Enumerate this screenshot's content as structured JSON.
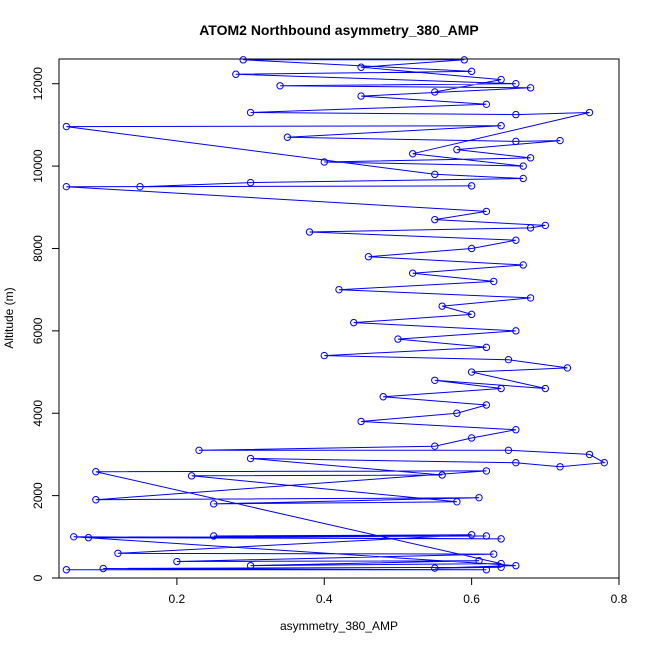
{
  "chart_data": {
    "type": "scatter",
    "title": "ATOM2 Northbound asymmetry_380_AMP",
    "xlabel": "asymmetry_380_AMP",
    "ylabel": "Altitude (m)",
    "xlim": [
      0.04,
      0.8
    ],
    "ylim": [
      0,
      12600
    ],
    "xticks": [
      0.2,
      0.4,
      0.6,
      0.8
    ],
    "yticks": [
      0,
      2000,
      4000,
      6000,
      8000,
      10000,
      12000
    ],
    "grid": false,
    "series": [
      {
        "marker": "open-circle",
        "connected": true,
        "color": "#0000ff",
        "points": [
          [
            0.05,
            200
          ],
          [
            0.62,
            200
          ],
          [
            0.1,
            230
          ],
          [
            0.64,
            260
          ],
          [
            0.55,
            240
          ],
          [
            0.66,
            300
          ],
          [
            0.06,
            1000
          ],
          [
            0.64,
            950
          ],
          [
            0.08,
            980
          ],
          [
            0.62,
            1020
          ],
          [
            0.25,
            1020
          ],
          [
            0.6,
            1050
          ],
          [
            0.12,
            600
          ],
          [
            0.63,
            580
          ],
          [
            0.2,
            400
          ],
          [
            0.61,
            420
          ],
          [
            0.3,
            300
          ],
          [
            0.64,
            350
          ],
          [
            0.09,
            2580
          ],
          [
            0.62,
            2600
          ],
          [
            0.09,
            1900
          ],
          [
            0.61,
            1950
          ],
          [
            0.25,
            1800
          ],
          [
            0.58,
            1850
          ],
          [
            0.22,
            2480
          ],
          [
            0.56,
            2500
          ],
          [
            0.3,
            2900
          ],
          [
            0.66,
            2800
          ],
          [
            0.72,
            2700
          ],
          [
            0.78,
            2800
          ],
          [
            0.76,
            3000
          ],
          [
            0.65,
            3100
          ],
          [
            0.23,
            3100
          ],
          [
            0.55,
            3200
          ],
          [
            0.6,
            3400
          ],
          [
            0.66,
            3600
          ],
          [
            0.45,
            3800
          ],
          [
            0.58,
            4000
          ],
          [
            0.62,
            4200
          ],
          [
            0.48,
            4400
          ],
          [
            0.64,
            4600
          ],
          [
            0.55,
            4800
          ],
          [
            0.7,
            4600
          ],
          [
            0.6,
            5000
          ],
          [
            0.73,
            5100
          ],
          [
            0.65,
            5300
          ],
          [
            0.4,
            5400
          ],
          [
            0.62,
            5600
          ],
          [
            0.5,
            5800
          ],
          [
            0.66,
            6000
          ],
          [
            0.44,
            6200
          ],
          [
            0.6,
            6400
          ],
          [
            0.56,
            6600
          ],
          [
            0.68,
            6800
          ],
          [
            0.42,
            7000
          ],
          [
            0.63,
            7200
          ],
          [
            0.52,
            7400
          ],
          [
            0.67,
            7600
          ],
          [
            0.46,
            7800
          ],
          [
            0.6,
            8000
          ],
          [
            0.66,
            8200
          ],
          [
            0.38,
            8400
          ],
          [
            0.68,
            8500
          ],
          [
            0.7,
            8560
          ],
          [
            0.55,
            8700
          ],
          [
            0.62,
            8900
          ],
          [
            0.05,
            9500
          ],
          [
            0.6,
            9520
          ],
          [
            0.15,
            9500
          ],
          [
            0.3,
            9600
          ],
          [
            0.67,
            9700
          ],
          [
            0.55,
            9800
          ],
          [
            0.05,
            10960
          ],
          [
            0.64,
            10980
          ],
          [
            0.35,
            10700
          ],
          [
            0.66,
            10600
          ],
          [
            0.72,
            10620
          ],
          [
            0.58,
            10400
          ],
          [
            0.68,
            10200
          ],
          [
            0.4,
            10100
          ],
          [
            0.67,
            10000
          ],
          [
            0.52,
            10300
          ],
          [
            0.76,
            11300
          ],
          [
            0.66,
            11250
          ],
          [
            0.3,
            11300
          ],
          [
            0.62,
            11500
          ],
          [
            0.45,
            11700
          ],
          [
            0.68,
            11900
          ],
          [
            0.34,
            11950
          ],
          [
            0.66,
            12000
          ],
          [
            0.28,
            12230
          ],
          [
            0.6,
            12300
          ],
          [
            0.29,
            12580
          ],
          [
            0.59,
            12580
          ],
          [
            0.45,
            12400
          ],
          [
            0.64,
            12100
          ],
          [
            0.55,
            11800
          ]
        ]
      }
    ]
  }
}
